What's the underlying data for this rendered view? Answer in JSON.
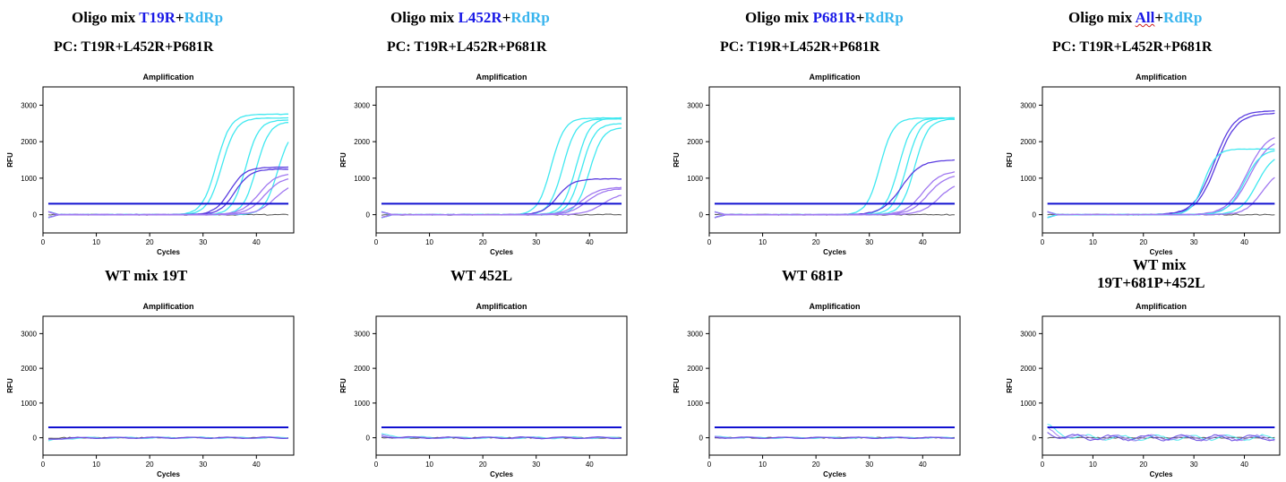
{
  "columns": [
    {
      "title_prefix": "Oligo mix",
      "title_target": "T19R",
      "title_plus": "+",
      "title_rdrp": "RdRp",
      "pc_label": "PC: T19R+L452R+P681R",
      "wt_title_line1": "WT mix 19T",
      "wt_title_line2": ""
    },
    {
      "title_prefix": "Oligo mix",
      "title_target": "L452R",
      "title_plus": "+",
      "title_rdrp": "RdRp",
      "pc_label": "PC: T19R+L452R+P681R",
      "wt_title_line1": "WT 452L",
      "wt_title_line2": ""
    },
    {
      "title_prefix": "Oligo mix",
      "title_target": "P681R",
      "title_plus": "+",
      "title_rdrp": "RdRp",
      "pc_label": "PC: T19R+L452R+P681R",
      "wt_title_line1": "WT 681P",
      "wt_title_line2": ""
    },
    {
      "title_prefix": "Oligo mix",
      "title_target": "All",
      "title_plus": "+",
      "title_rdrp": "RdRp",
      "pc_label": "PC: T19R+L452R+P681R",
      "wt_title_line1": "WT mix",
      "wt_title_line2": "19T+681P+452L"
    }
  ],
  "colors": {
    "threshold": "#1010d0",
    "cyan": "#40e8f0",
    "light_purple": "#a078f0",
    "dark_purple": "#5a3ce0",
    "baseline_gray": "#555555",
    "accent_blue": "#1a1ae6",
    "rdrp_blue": "#38b4ee"
  },
  "chart_data": [
    {
      "panel": "oligo-t19r",
      "type": "line",
      "title": "Amplification",
      "xlabel": "Cycles",
      "ylabel": "RFU",
      "xlim": [
        0,
        47
      ],
      "ylim": [
        -500,
        3500
      ],
      "xticks": [
        0,
        10,
        20,
        30,
        40
      ],
      "yticks": [
        0,
        1000,
        2000,
        3000
      ],
      "threshold": 300,
      "series": [
        {
          "color": "cyan",
          "plateau": 2750,
          "midpoint": 32.5,
          "k": 0.75
        },
        {
          "color": "cyan",
          "plateau": 2650,
          "midpoint": 33.5,
          "k": 0.75
        },
        {
          "color": "cyan",
          "plateau": 2600,
          "midpoint": 38.0,
          "k": 0.8
        },
        {
          "color": "cyan",
          "plateau": 2550,
          "midpoint": 40.0,
          "k": 0.8
        },
        {
          "color": "cyan",
          "plateau": 2400,
          "midpoint": 44.0,
          "k": 0.8
        },
        {
          "color": "dark_purple",
          "plateau": 1300,
          "midpoint": 35.0,
          "k": 0.7
        },
        {
          "color": "dark_purple",
          "plateau": 1250,
          "midpoint": 36.0,
          "k": 0.7
        },
        {
          "color": "light_purple",
          "plateau": 1150,
          "midpoint": 40.5,
          "k": 0.6
        },
        {
          "color": "light_purple",
          "plateau": 1050,
          "midpoint": 41.5,
          "k": 0.6
        },
        {
          "color": "light_purple",
          "plateau": 900,
          "midpoint": 43.5,
          "k": 0.6
        }
      ]
    },
    {
      "panel": "oligo-l452r",
      "type": "line",
      "title": "Amplification",
      "xlabel": "Cycles",
      "ylabel": "RFU",
      "xlim": [
        0,
        47
      ],
      "ylim": [
        -500,
        3500
      ],
      "xticks": [
        0,
        10,
        20,
        30,
        40
      ],
      "yticks": [
        0,
        1000,
        2000,
        3000
      ],
      "threshold": 300,
      "series": [
        {
          "color": "cyan",
          "plateau": 2650,
          "midpoint": 32.8,
          "k": 0.8
        },
        {
          "color": "cyan",
          "plateau": 2620,
          "midpoint": 35.0,
          "k": 0.8
        },
        {
          "color": "cyan",
          "plateau": 2650,
          "midpoint": 37.5,
          "k": 0.8
        },
        {
          "color": "cyan",
          "plateau": 2500,
          "midpoint": 38.5,
          "k": 0.8
        },
        {
          "color": "cyan",
          "plateau": 2400,
          "midpoint": 40.0,
          "k": 0.8
        },
        {
          "color": "dark_purple",
          "plateau": 980,
          "midpoint": 34.0,
          "k": 0.7
        },
        {
          "color": "light_purple",
          "plateau": 750,
          "midpoint": 38.5,
          "k": 0.6
        },
        {
          "color": "light_purple",
          "plateau": 720,
          "midpoint": 39.5,
          "k": 0.6
        },
        {
          "color": "light_purple",
          "plateau": 600,
          "midpoint": 42.5,
          "k": 0.6
        }
      ]
    },
    {
      "panel": "oligo-p681r",
      "type": "line",
      "title": "Amplification",
      "xlabel": "Cycles",
      "ylabel": "RFU",
      "xlim": [
        0,
        47
      ],
      "ylim": [
        -500,
        3500
      ],
      "xticks": [
        0,
        10,
        20,
        30,
        40
      ],
      "yticks": [
        0,
        1000,
        2000,
        3000
      ],
      "threshold": 300,
      "series": [
        {
          "color": "cyan",
          "plateau": 2650,
          "midpoint": 32.0,
          "k": 0.8
        },
        {
          "color": "cyan",
          "plateau": 2650,
          "midpoint": 35.5,
          "k": 0.8
        },
        {
          "color": "cyan",
          "plateau": 2650,
          "midpoint": 37.0,
          "k": 0.8
        },
        {
          "color": "cyan",
          "plateau": 2620,
          "midpoint": 38.5,
          "k": 0.8
        },
        {
          "color": "dark_purple",
          "plateau": 1500,
          "midpoint": 36.0,
          "k": 0.55
        },
        {
          "color": "light_purple",
          "plateau": 1200,
          "midpoint": 40.0,
          "k": 0.6
        },
        {
          "color": "light_purple",
          "plateau": 1100,
          "midpoint": 41.0,
          "k": 0.6
        },
        {
          "color": "light_purple",
          "plateau": 900,
          "midpoint": 43.0,
          "k": 0.6
        }
      ]
    },
    {
      "panel": "oligo-all",
      "type": "line",
      "title": "Amplification",
      "xlabel": "Cycles",
      "ylabel": "RFU",
      "xlim": [
        0,
        47
      ],
      "ylim": [
        -500,
        3500
      ],
      "xticks": [
        0,
        10,
        20,
        30,
        40
      ],
      "yticks": [
        0,
        1000,
        2000,
        3000
      ],
      "threshold": 300,
      "series": [
        {
          "color": "dark_purple",
          "plateau": 2850,
          "midpoint": 34.0,
          "k": 0.5
        },
        {
          "color": "dark_purple",
          "plateau": 2780,
          "midpoint": 34.5,
          "k": 0.5
        },
        {
          "color": "cyan",
          "plateau": 1800,
          "midpoint": 32.0,
          "k": 0.8
        },
        {
          "color": "light_purple",
          "plateau": 2250,
          "midpoint": 40.5,
          "k": 0.5
        },
        {
          "color": "light_purple",
          "plateau": 2100,
          "midpoint": 41.0,
          "k": 0.5
        },
        {
          "color": "cyan",
          "plateau": 1800,
          "midpoint": 40.0,
          "k": 0.6
        },
        {
          "color": "cyan",
          "plateau": 1700,
          "midpoint": 42.5,
          "k": 0.6
        },
        {
          "color": "light_purple",
          "plateau": 1250,
          "midpoint": 43.5,
          "k": 0.6
        }
      ]
    },
    {
      "panel": "wt-19t",
      "type": "line",
      "title": "Amplification",
      "xlabel": "Cycles",
      "ylabel": "RFU",
      "xlim": [
        0,
        47
      ],
      "ylim": [
        -500,
        3500
      ],
      "xticks": [
        0,
        10,
        20,
        30,
        40
      ],
      "yticks": [
        0,
        1000,
        2000,
        3000
      ],
      "threshold": 300,
      "noise": {
        "start": -100,
        "amp": 20
      }
    },
    {
      "panel": "wt-452l",
      "type": "line",
      "title": "Amplification",
      "xlabel": "Cycles",
      "ylabel": "RFU",
      "xlim": [
        0,
        47
      ],
      "ylim": [
        -500,
        3500
      ],
      "xticks": [
        0,
        10,
        20,
        30,
        40
      ],
      "yticks": [
        0,
        1000,
        2000,
        3000
      ],
      "threshold": 300,
      "noise": {
        "start": 100,
        "amp": 25
      }
    },
    {
      "panel": "wt-681p",
      "type": "line",
      "title": "Amplification",
      "xlabel": "Cycles",
      "ylabel": "RFU",
      "xlim": [
        0,
        47
      ],
      "ylim": [
        -500,
        3500
      ],
      "xticks": [
        0,
        10,
        20,
        30,
        40
      ],
      "yticks": [
        0,
        1000,
        2000,
        3000
      ],
      "threshold": 300,
      "noise": {
        "start": 30,
        "amp": 20
      }
    },
    {
      "panel": "wt-mix",
      "type": "line",
      "title": "Amplification",
      "xlabel": "Cycles",
      "ylabel": "RFU",
      "xlim": [
        0,
        47
      ],
      "ylim": [
        -500,
        3500
      ],
      "xticks": [
        0,
        10,
        20,
        30,
        40
      ],
      "yticks": [
        0,
        1000,
        2000,
        3000
      ],
      "threshold": 300,
      "noise": {
        "start": 350,
        "amp": 80
      }
    }
  ]
}
